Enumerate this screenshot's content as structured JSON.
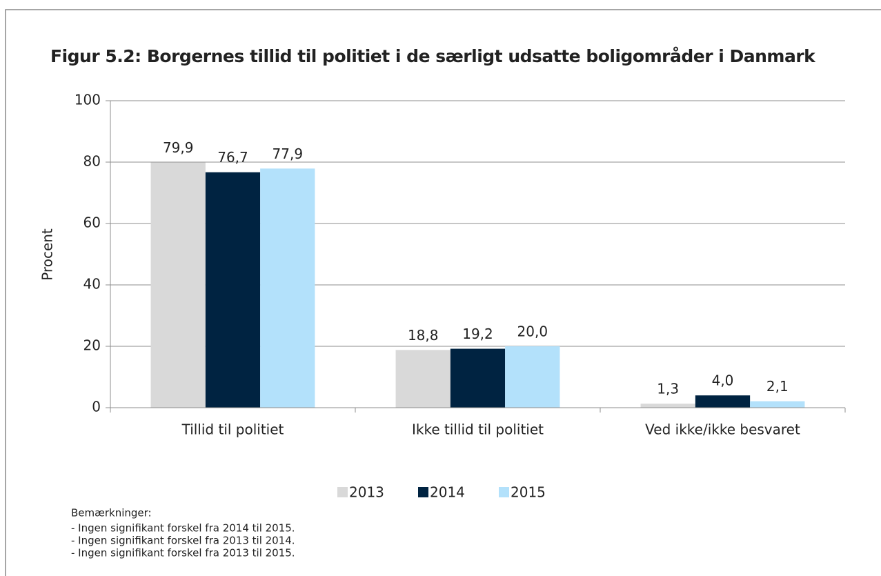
{
  "chart_data": {
    "type": "bar",
    "title": "Figur 5.2: Borgernes tillid til politiet i de særligt udsatte boligområder i Danmark",
    "y_label": "Procent",
    "categories": [
      "Tillid til politiet",
      "Ikke tillid til politiet",
      "Ved ikke/ikke  besvaret"
    ],
    "series": [
      {
        "name": "2013",
        "color": "#d9d9d9",
        "values": [
          79.9,
          18.8,
          1.3
        ],
        "value_labels": [
          "79,9",
          "18,8",
          "1,3"
        ]
      },
      {
        "name": "2014",
        "color": "#002341",
        "values": [
          76.7,
          19.2,
          4.0
        ],
        "value_labels": [
          "76,7",
          "19,2",
          "4,0"
        ]
      },
      {
        "name": "2015",
        "color": "#b3e1fb",
        "values": [
          77.9,
          20.0,
          2.1
        ],
        "value_labels": [
          "77,9",
          "20,0",
          "2,1"
        ]
      }
    ],
    "ylim": [
      0,
      100
    ],
    "yticks": [
      0,
      20,
      40,
      60,
      80,
      100
    ],
    "grid": true,
    "legend": "bottom",
    "notes": {
      "heading": "Bemærkninger:",
      "lines": [
        " - Ingen signifikant  forskel fra 2014 til 2015.",
        " - Ingen signifikant  forskel fra 2013 til 2014.",
        " - Ingen signifikant  forskel fra 2013 til 2015."
      ]
    }
  }
}
